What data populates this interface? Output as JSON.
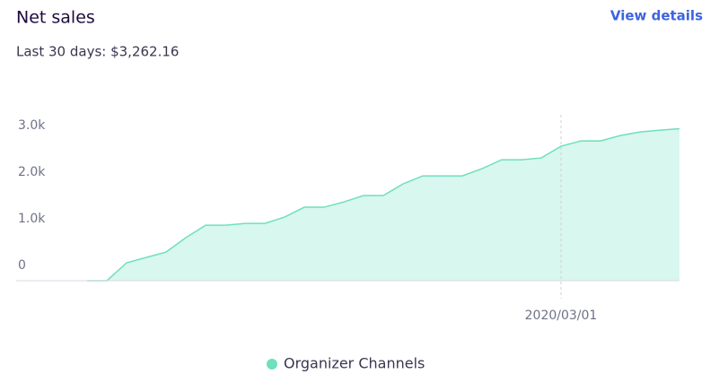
{
  "chart_data": {
    "type": "area",
    "title": "Net sales",
    "subtitle": "Last 30 days: $3,262.16",
    "link": "View details",
    "x": [
      "2020-02-06",
      "2020-02-07",
      "2020-02-08",
      "2020-02-09",
      "2020-02-10",
      "2020-02-11",
      "2020-02-12",
      "2020-02-13",
      "2020-02-14",
      "2020-02-15",
      "2020-02-16",
      "2020-02-17",
      "2020-02-18",
      "2020-02-19",
      "2020-02-20",
      "2020-02-21",
      "2020-02-22",
      "2020-02-23",
      "2020-02-24",
      "2020-02-25",
      "2020-02-26",
      "2020-02-27",
      "2020-02-28",
      "2020-02-29",
      "2020-03-01",
      "2020-03-02",
      "2020-03-03",
      "2020-03-04",
      "2020-03-05",
      "2020-03-06",
      "2020-03-07"
    ],
    "series": [
      {
        "name": "Organizer Channels",
        "color": "#6ee0bd",
        "fill": "#d8f7ee",
        "values": [
          0,
          0,
          385,
          500,
          615,
          923,
          1190,
          1190,
          1230,
          1230,
          1365,
          1577,
          1577,
          1690,
          1827,
          1827,
          2077,
          2250,
          2250,
          2250,
          2404,
          2596,
          2596,
          2635,
          2885,
          3000,
          3000,
          3115,
          3192,
          3230,
          3262
        ]
      }
    ],
    "xlim": [
      "2020-02-06",
      "2020-03-07"
    ],
    "xticks": [
      {
        "value": "2020-03-01",
        "label": "2020/03/01"
      }
    ],
    "ylim": [
      0,
      3560
    ],
    "yticks": [
      0,
      {
        "value": 1000,
        "label": "1.0k"
      },
      {
        "value": 2000,
        "label": "2.0k"
      },
      {
        "value": 3000,
        "label": "3.0k"
      }
    ],
    "grid": false
  }
}
